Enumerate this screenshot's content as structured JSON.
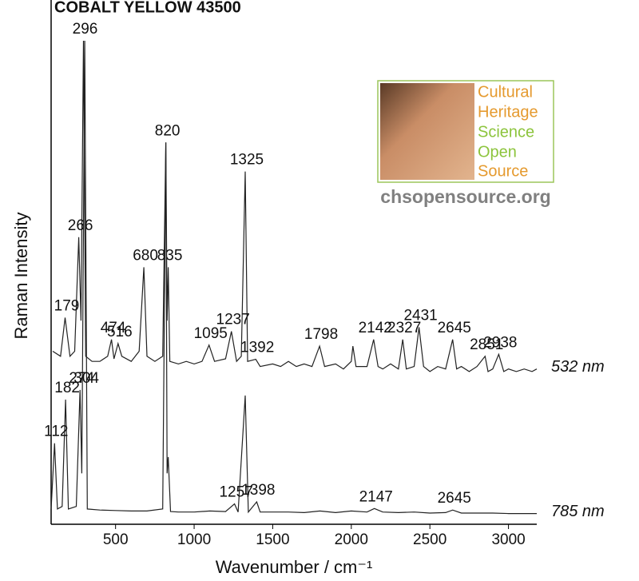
{
  "chart_data": {
    "type": "line",
    "title": "COBALT YELLOW 43500",
    "x_label": "Wavenumber / cm⁻¹",
    "y_label": "Raman Intensity",
    "xlim": [
      90,
      3180
    ],
    "ylim": [
      0,
      103
    ],
    "xticks": [
      500,
      1000,
      1500,
      2000,
      2500,
      3000
    ],
    "series": [
      {
        "name": "532 nm",
        "color": "#222222",
        "x": [
          100,
          150,
          179,
          210,
          240,
          266,
          280,
          296,
          310,
          350,
          400,
          450,
          474,
          490,
          516,
          540,
          600,
          650,
          680,
          700,
          750,
          800,
          820,
          828,
          835,
          845,
          900,
          950,
          1000,
          1050,
          1095,
          1130,
          1200,
          1237,
          1270,
          1300,
          1325,
          1340,
          1392,
          1420,
          1500,
          1550,
          1600,
          1650,
          1700,
          1750,
          1798,
          1830,
          1900,
          1950,
          2000,
          2010,
          2030,
          2100,
          2142,
          2170,
          2200,
          2250,
          2300,
          2327,
          2350,
          2400,
          2431,
          2460,
          2500,
          2550,
          2600,
          2645,
          2670,
          2700,
          2750,
          2800,
          2851,
          2870,
          2900,
          2938,
          2970,
          3000,
          3050,
          3100,
          3150,
          3180
        ],
        "values": [
          34,
          33,
          40.6,
          33,
          34,
          56.4,
          40,
          95,
          33,
          32,
          32,
          33,
          36.3,
          32.5,
          35.5,
          33,
          32,
          34,
          50.5,
          33,
          32,
          33,
          75,
          40,
          50.5,
          32,
          31.5,
          32,
          31.5,
          32,
          35.2,
          32,
          32.5,
          37.9,
          32,
          33,
          69.3,
          32,
          32.4,
          31,
          31.5,
          31,
          32,
          31,
          31.5,
          31,
          35,
          31,
          31.5,
          30.5,
          32,
          35,
          31,
          31,
          36.3,
          31,
          30.5,
          31.5,
          30.5,
          36.3,
          30.5,
          31,
          38.7,
          31,
          30,
          31,
          30.5,
          36.3,
          30.5,
          31,
          30,
          31,
          33,
          30,
          30.5,
          33.4,
          30,
          30.5,
          30,
          30.5,
          30,
          30.5
        ],
        "peaks": [
          179,
          266,
          296,
          474,
          516,
          680,
          820,
          835,
          1095,
          1237,
          1325,
          1392,
          1798,
          2142,
          2327,
          2431,
          2645,
          2851,
          2938
        ]
      },
      {
        "name": "785 nm",
        "color": "#222222",
        "x": [
          90,
          112,
          130,
          160,
          182,
          200,
          250,
          274,
          285,
          304,
          320,
          400,
          500,
          600,
          700,
          800,
          820,
          828,
          835,
          850,
          900,
          1000,
          1100,
          1200,
          1257,
          1280,
          1325,
          1345,
          1398,
          1420,
          1500,
          1600,
          1700,
          1800,
          1900,
          2000,
          2100,
          2147,
          2200,
          2300,
          2400,
          2500,
          2600,
          2645,
          2700,
          2800,
          2900,
          3000,
          3100,
          3180
        ],
        "values": [
          3,
          15.9,
          3,
          3.5,
          24.5,
          3,
          3.5,
          26.4,
          10,
          95,
          3,
          2.8,
          2.7,
          2.6,
          2.6,
          3,
          75,
          10,
          13.2,
          2.5,
          2.4,
          2.4,
          2.6,
          2.5,
          4,
          2.4,
          25.3,
          2.4,
          4.4,
          2.4,
          2.4,
          2.4,
          2.3,
          2.6,
          2.3,
          2.6,
          2.4,
          3.1,
          2.4,
          2.3,
          2.4,
          2.2,
          2.3,
          2.8,
          2.2,
          2.2,
          2.2,
          2.1,
          2.1,
          2.1
        ],
        "peaks": [
          112,
          182,
          274,
          304,
          1257,
          1398,
          2147,
          2645
        ]
      }
    ]
  },
  "logo": {
    "lines": [
      "Cultural",
      "Heritage",
      "Science",
      "Open",
      "Source"
    ],
    "url": "chsopensource.org"
  }
}
